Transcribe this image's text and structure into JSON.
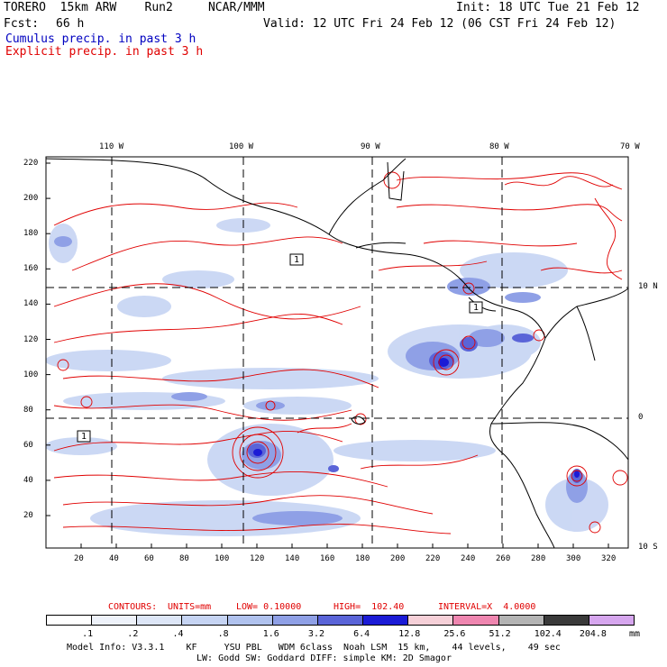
{
  "header": {
    "model": "TORERO  15km ARW    Run2     NCAR/MMM",
    "init": "Init: 18 UTC Tue 21 Feb 12",
    "fcst_label": "Fcst:",
    "fcst_value": "66 h",
    "valid": "Valid: 12 UTC Fri 24 Feb 12 (06 CST Fri 24 Feb 12)",
    "field1": "Cumulus precip. in past 3 h",
    "field2": "Explicit precip. in past 3 h",
    "field1_color": "#0000c0",
    "field2_color": "#e00000"
  },
  "map": {
    "top_lon_labels": [
      "110 W",
      "100 W",
      "90 W",
      "80 W",
      "70 W"
    ],
    "right_lat_labels": [
      "10 N",
      "0",
      "10 S"
    ],
    "y_ticks": [
      "220",
      "200",
      "180",
      "160",
      "140",
      "120",
      "100",
      "80",
      "60",
      "40",
      "20"
    ],
    "x_ticks": [
      "20",
      "40",
      "60",
      "80",
      "100",
      "120",
      "140",
      "160",
      "180",
      "200",
      "220",
      "240",
      "260",
      "280",
      "300",
      "320"
    ],
    "boxed_labels": [
      "1",
      "1",
      "1"
    ]
  },
  "contours": {
    "label": "CONTOURS:",
    "units": "UNITS=mm",
    "low": "LOW= 0.10000",
    "high": "HIGH=  102.40",
    "interval": "INTERVAL=X  4.0000"
  },
  "colorbar": {
    "tick_labels": [
      ".1",
      ".2",
      ".4",
      ".8",
      "1.6",
      "3.2",
      "6.4",
      "12.8",
      "25.6",
      "51.2",
      "102.4",
      "204.8"
    ],
    "unit": "mm",
    "colors": [
      "#ffffff",
      "#eef2fa",
      "#dde6f7",
      "#c6d4f3",
      "#b0c2ee",
      "#8fa0e6",
      "#5a64d8",
      "#1b1bd6",
      "#f6d0d8",
      "#ef86b0",
      "#b4b4b4",
      "#3a3a3a",
      "#d6a6ee"
    ]
  },
  "footer": {
    "line1": "Model Info: V3.3.1    KF     YSU PBL   WDM 6class  Noah LSM  15 km,    44 levels,    49 sec",
    "line2": "LW: Godd SW: Goddard DIFF: simple KM: 2D Smagor"
  }
}
